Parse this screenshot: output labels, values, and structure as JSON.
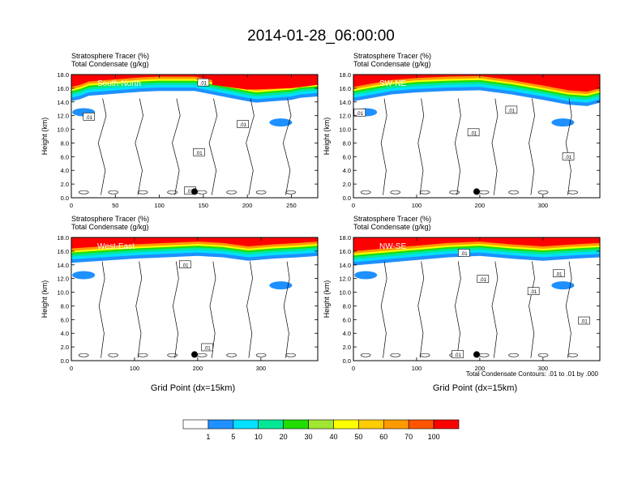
{
  "figure": {
    "title": "2014-01-28_06:00:00",
    "left_label": "Stratosphere Tracer   (%)",
    "right_label_top": "Total Condensate   (g/kg)",
    "ylabel": "Height (km)",
    "xlabel": "Grid Point (dx=15km)",
    "contour_note": "Total Condensate Contours: .01 to .01 by .000"
  },
  "colors": {
    "levels": [
      "#ffffff",
      "#1e90ff",
      "#00e0ff",
      "#00e895",
      "#22dd00",
      "#a0e632",
      "#ffff00",
      "#ffcc00",
      "#ff9900",
      "#ff5500",
      "#ff0000"
    ],
    "contour": "#000000"
  },
  "colorbar": {
    "labels": [
      "1",
      "5",
      "10",
      "20",
      "30",
      "40",
      "50",
      "60",
      "70",
      "100"
    ]
  },
  "chart_data": [
    {
      "type": "heatmap",
      "name": "South-North",
      "subtitle_left": "Stratosphere Tracer   (%)",
      "subtitle_left2": "Total Condensate   (g/kg)",
      "xlim": [
        0,
        280
      ],
      "xticks": [
        "0",
        "50",
        "100",
        "150",
        "200",
        "250"
      ],
      "xtick_values": [
        0,
        50,
        100,
        150,
        200,
        250
      ],
      "ylim": [
        0,
        18
      ],
      "yticks": [
        "0.0",
        "2.0",
        "4.0",
        "6.0",
        "8.0",
        "10.0",
        "12.0",
        "14.0",
        "16.0",
        "18.0"
      ],
      "marker_x": 140,
      "contour_labels": [
        ".01",
        ".01",
        ".01",
        ".01",
        ".01"
      ],
      "contour_label_positions": [
        [
          20,
          11.8
        ],
        [
          145,
          6.6
        ],
        [
          195,
          10.7
        ],
        [
          135,
          1.0
        ],
        [
          150,
          16.8
        ]
      ],
      "tropopause": [
        [
          0,
          15.0
        ],
        [
          10,
          15.3
        ],
        [
          20,
          15.8
        ],
        [
          40,
          16.0
        ],
        [
          60,
          16.2
        ],
        [
          80,
          16.4
        ],
        [
          100,
          16.5
        ],
        [
          120,
          16.5
        ],
        [
          140,
          16.5
        ],
        [
          160,
          16.0
        ],
        [
          180,
          15.5
        ],
        [
          200,
          15.0
        ],
        [
          210,
          14.8
        ],
        [
          230,
          15.0
        ],
        [
          250,
          15.2
        ],
        [
          260,
          15.5
        ],
        [
          280,
          15.7
        ]
      ],
      "high_tracer_region": [
        [
          160,
          18
        ],
        [
          160,
          16.5
        ],
        [
          200,
          15.8
        ],
        [
          250,
          16.0
        ],
        [
          280,
          16.5
        ],
        [
          280,
          18
        ]
      ]
    },
    {
      "type": "heatmap",
      "name": "SW-NE",
      "subtitle_left": "Stratosphere Tracer   (%)",
      "subtitle_left2": "Total Condensate   (g/kg)",
      "xlim": [
        0,
        390
      ],
      "xticks": [
        "0",
        "100",
        "200",
        "300"
      ],
      "xtick_values": [
        0,
        100,
        200,
        300
      ],
      "ylim": [
        0,
        18
      ],
      "yticks": [
        "0.0",
        "2.0",
        "4.0",
        "6.0",
        "8.0",
        "10.0",
        "12.0",
        "14.0",
        "16.0",
        "18.0"
      ],
      "marker_x": 195,
      "contour_labels": [
        ".01",
        ".01",
        ".01",
        ".01"
      ],
      "contour_label_positions": [
        [
          10,
          12.4
        ],
        [
          190,
          9.5
        ],
        [
          250,
          12.8
        ],
        [
          340,
          6.0
        ]
      ],
      "tropopause": [
        [
          0,
          15.0
        ],
        [
          30,
          15.5
        ],
        [
          60,
          16.0
        ],
        [
          100,
          16.3
        ],
        [
          150,
          16.5
        ],
        [
          200,
          16.6
        ],
        [
          250,
          16.0
        ],
        [
          300,
          15.2
        ],
        [
          340,
          14.5
        ],
        [
          370,
          14.3
        ],
        [
          390,
          14.8
        ]
      ]
    },
    {
      "type": "heatmap",
      "name": "West-East",
      "subtitle_left": "Stratosphere Tracer   (%)",
      "subtitle_left2": "Total Condensate   (g/kg)",
      "xlim": [
        0,
        390
      ],
      "xticks": [
        "0",
        "100",
        "200",
        "300"
      ],
      "xtick_values": [
        0,
        100,
        200,
        300
      ],
      "ylim": [
        0,
        18
      ],
      "yticks": [
        "0.0",
        "2.0",
        "4.0",
        "6.0",
        "8.0",
        "10.0",
        "12.0",
        "14.0",
        "16.0",
        "18.0"
      ],
      "marker_x": 195,
      "contour_labels": [
        ".01",
        ".01"
      ],
      "contour_label_positions": [
        [
          180,
          14.0
        ],
        [
          215,
          1.9
        ]
      ],
      "tropopause": [
        [
          0,
          15.2
        ],
        [
          50,
          15.5
        ],
        [
          100,
          15.8
        ],
        [
          150,
          16.0
        ],
        [
          200,
          16.2
        ],
        [
          240,
          16.0
        ],
        [
          280,
          15.5
        ],
        [
          320,
          15.8
        ],
        [
          360,
          16.0
        ],
        [
          390,
          16.2
        ]
      ]
    },
    {
      "type": "heatmap",
      "name": "NW-SE",
      "subtitle_left": "Stratosphere Tracer   (%)",
      "subtitle_left2": "Total Condensate   (g/kg)",
      "xlim": [
        0,
        390
      ],
      "xticks": [
        "0",
        "100",
        "200",
        "300"
      ],
      "xtick_values": [
        0,
        100,
        200,
        300
      ],
      "ylim": [
        0,
        18
      ],
      "yticks": [
        "0.0",
        "2.0",
        "4.0",
        "6.0",
        "8.0",
        "10.0",
        "12.0",
        "14.0",
        "16.0",
        "18.0"
      ],
      "marker_x": 195,
      "contour_labels": [
        ".01",
        ".01",
        ".01",
        ".01",
        ".01",
        ".01"
      ],
      "contour_label_positions": [
        [
          175,
          15.7
        ],
        [
          205,
          11.9
        ],
        [
          285,
          10.1
        ],
        [
          325,
          12.7
        ],
        [
          365,
          5.8
        ],
        [
          165,
          0.9
        ]
      ],
      "tropopause": [
        [
          0,
          14.8
        ],
        [
          50,
          15.2
        ],
        [
          100,
          15.6
        ],
        [
          150,
          16.0
        ],
        [
          200,
          16.2
        ],
        [
          250,
          15.8
        ],
        [
          300,
          15.5
        ],
        [
          350,
          15.8
        ],
        [
          390,
          16.0
        ]
      ]
    }
  ]
}
